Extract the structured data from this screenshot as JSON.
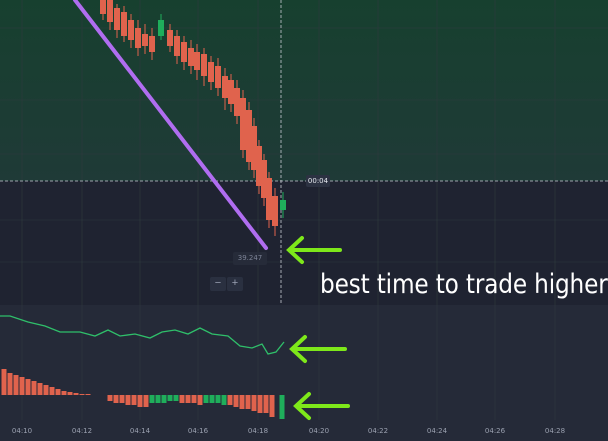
{
  "annotation": {
    "text": "best time to trade higher"
  },
  "crosshair": {
    "time_label": "00:04"
  },
  "price_badge": "39.247",
  "zoom": {
    "minus": "−",
    "plus": "+"
  },
  "x_axis": {
    "ticks": [
      "04:10",
      "04:12",
      "04:14",
      "04:16",
      "04:18",
      "04:20",
      "04:22",
      "04:24",
      "04:26",
      "04:28"
    ]
  },
  "colors": {
    "up": "#1fae5b",
    "down": "#e0634d",
    "trendline": "#b06df0",
    "arrow": "#7ee81a",
    "oscillator_line": "#2fbf6a",
    "zone_top": "#173d33"
  }
}
